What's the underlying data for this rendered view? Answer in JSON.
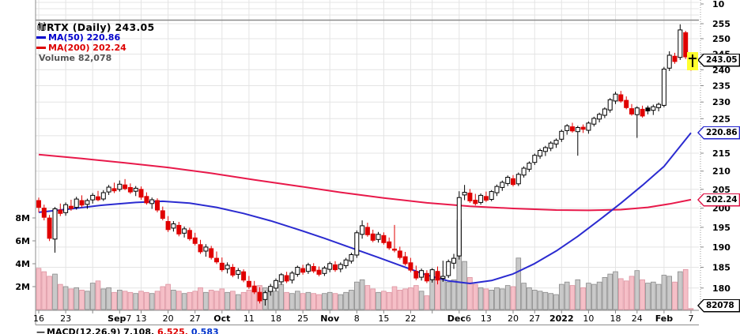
{
  "legend": {
    "symbol_line": "VRTX (Daily) 243.05",
    "ma50": "MA(50) 220.86",
    "ma200": "MA(200) 202.24",
    "volume": "Volume 82,078"
  },
  "axis_boxes": {
    "last": "243.05",
    "ma50": "220.86",
    "ma200": "202.24",
    "volume": "82078"
  },
  "upper_panel_tick": "10",
  "macd": {
    "dash": "—",
    "part1": "MACD(12,26,9) 7.108,",
    "part2": "6.525,",
    "part3": "0.583"
  },
  "colors": {
    "candle_up_border": "#000000",
    "candle_down": "#e00000",
    "ma50_line": "#2b2bd0",
    "ma200_line": "#e8194a",
    "vol_up_fill": "#c9c9c9",
    "vol_up_border": "#8a8a8a",
    "vol_down_fill": "#f5bfc7",
    "vol_down_border": "#dd93a0",
    "grid": "#e4e4e4",
    "panel_border": "#8c8c8c",
    "marker_yellow": "#ffff2e",
    "box_last_border": "#000000",
    "box_ma50_border": "#2222cc",
    "box_ma200_border": "#dd1144"
  },
  "chart_data": {
    "type": "candlestick",
    "symbol": "VRTX",
    "timeframe": "Daily",
    "title": "VRTX (Daily) 243.05",
    "last_price": 243.05,
    "ma50_value": 220.86,
    "ma200_value": 202.24,
    "last_volume": 82078,
    "price_axis": {
      "scale": "log",
      "ticks": [
        255,
        250,
        245,
        240,
        235,
        230,
        225,
        220,
        215,
        210,
        205,
        200,
        195,
        190,
        185,
        180
      ]
    },
    "volume_axis": {
      "ticks_millions": [
        8,
        6,
        4,
        2
      ],
      "labels": [
        "8M",
        "6M",
        "4M",
        "2M"
      ]
    },
    "x_ticks": [
      {
        "i": 0,
        "parts": [
          {
            "t": "16",
            "b": false
          }
        ]
      },
      {
        "i": 5,
        "parts": [
          {
            "t": "23",
            "b": false
          }
        ]
      },
      {
        "i": 15,
        "parts": [
          {
            "t": "Sep",
            "b": true
          },
          {
            "t": "7",
            "b": false
          }
        ]
      },
      {
        "i": 19,
        "parts": [
          {
            "t": "13",
            "b": false
          }
        ]
      },
      {
        "i": 24,
        "parts": [
          {
            "t": "20",
            "b": false
          }
        ]
      },
      {
        "i": 29,
        "parts": [
          {
            "t": "27",
            "b": false
          }
        ]
      },
      {
        "i": 34,
        "parts": [
          {
            "t": "Oct",
            "b": true
          }
        ]
      },
      {
        "i": 39,
        "parts": [
          {
            "t": "11",
            "b": false
          }
        ]
      },
      {
        "i": 44,
        "parts": [
          {
            "t": "18",
            "b": false
          }
        ]
      },
      {
        "i": 49,
        "parts": [
          {
            "t": "25",
            "b": false
          }
        ]
      },
      {
        "i": 54,
        "parts": [
          {
            "t": "Nov",
            "b": true
          }
        ]
      },
      {
        "i": 59,
        "parts": [
          {
            "t": "8",
            "b": false
          }
        ]
      },
      {
        "i": 64,
        "parts": [
          {
            "t": "15",
            "b": false
          }
        ]
      },
      {
        "i": 69,
        "parts": [
          {
            "t": "22",
            "b": false
          }
        ]
      },
      {
        "i": 78,
        "parts": [
          {
            "t": "Dec",
            "b": true
          },
          {
            "t": "6",
            "b": false
          }
        ]
      },
      {
        "i": 83,
        "parts": [
          {
            "t": "13",
            "b": false
          }
        ]
      },
      {
        "i": 88,
        "parts": [
          {
            "t": "20",
            "b": false
          }
        ]
      },
      {
        "i": 92,
        "parts": [
          {
            "t": "27",
            "b": false
          }
        ]
      },
      {
        "i": 97,
        "parts": [
          {
            "t": "2022",
            "b": true
          }
        ]
      },
      {
        "i": 102,
        "parts": [
          {
            "t": "10",
            "b": false
          }
        ]
      },
      {
        "i": 107,
        "parts": [
          {
            "t": "18",
            "b": false
          }
        ]
      },
      {
        "i": 111,
        "parts": [
          {
            "t": "24",
            "b": false
          }
        ]
      },
      {
        "i": 116,
        "parts": [
          {
            "t": "Feb",
            "b": true
          }
        ]
      },
      {
        "i": 121,
        "parts": [
          {
            "t": "7",
            "b": false
          }
        ]
      }
    ],
    "extra_grid_weeks": [
      10,
      73
    ],
    "candles": [
      [
        202.0,
        202.8,
        198.9,
        200.2,
        3.6
      ],
      [
        200.0,
        200.9,
        196.8,
        197.6,
        3.3
      ],
      [
        197.4,
        198.2,
        191.5,
        192.2,
        2.9
      ],
      [
        192.0,
        200.3,
        188.6,
        199.8,
        3.1
      ],
      [
        199.5,
        201.2,
        197.9,
        198.6,
        2.2
      ],
      [
        198.8,
        201.5,
        198.0,
        200.9,
        2.0
      ],
      [
        200.5,
        202.2,
        199.3,
        199.9,
        1.8
      ],
      [
        200.2,
        203.0,
        199.6,
        202.4,
        1.9
      ],
      [
        202.0,
        203.4,
        200.2,
        200.8,
        1.7
      ],
      [
        201.0,
        202.5,
        199.8,
        202.0,
        1.6
      ],
      [
        202.2,
        204.0,
        201.2,
        203.4,
        2.3
      ],
      [
        203.0,
        204.6,
        201.8,
        202.2,
        2.5
      ],
      [
        202.4,
        204.8,
        201.9,
        204.1,
        1.8
      ],
      [
        204.3,
        206.2,
        203.5,
        205.6,
        1.9
      ],
      [
        205.2,
        206.8,
        204.0,
        204.6,
        1.5
      ],
      [
        205.0,
        207.4,
        204.4,
        206.4,
        1.7
      ],
      [
        206.2,
        207.8,
        204.8,
        205.2,
        1.6
      ],
      [
        205.5,
        206.6,
        203.8,
        204.3,
        1.5
      ],
      [
        204.5,
        205.9,
        203.2,
        205.3,
        1.4
      ],
      [
        205.0,
        205.8,
        202.2,
        202.9,
        1.6
      ],
      [
        203.1,
        204.2,
        200.9,
        201.4,
        1.5
      ],
      [
        201.2,
        202.8,
        199.8,
        202.2,
        1.4
      ],
      [
        202.0,
        202.6,
        198.9,
        199.5,
        1.6
      ],
      [
        199.3,
        200.4,
        196.8,
        197.3,
        2.0
      ],
      [
        196.5,
        197.9,
        193.8,
        194.4,
        2.2
      ],
      [
        194.8,
        196.6,
        193.9,
        195.9,
        1.7
      ],
      [
        195.5,
        196.4,
        192.7,
        193.3,
        1.6
      ],
      [
        193.5,
        195.2,
        192.4,
        194.6,
        1.4
      ],
      [
        194.2,
        194.9,
        191.6,
        192.1,
        1.5
      ],
      [
        192.3,
        193.6,
        190.4,
        190.9,
        1.6
      ],
      [
        190.6,
        191.8,
        188.3,
        188.8,
        1.9
      ],
      [
        189.0,
        190.7,
        187.6,
        190.0,
        1.5
      ],
      [
        189.6,
        190.3,
        186.9,
        187.4,
        1.7
      ],
      [
        187.2,
        188.9,
        185.8,
        186.3,
        1.6
      ],
      [
        186.0,
        187.4,
        183.9,
        184.4,
        1.8
      ],
      [
        184.6,
        186.2,
        183.5,
        185.5,
        1.5
      ],
      [
        185.0,
        185.8,
        182.6,
        183.1,
        1.6
      ],
      [
        183.3,
        184.8,
        182.2,
        184.2,
        1.3
      ],
      [
        183.9,
        184.5,
        181.4,
        181.9,
        1.5
      ],
      [
        181.6,
        182.9,
        179.8,
        180.3,
        1.7
      ],
      [
        180.5,
        181.7,
        178.6,
        179.1,
        1.8
      ],
      [
        179.0,
        180.2,
        176.4,
        177.0,
        2.1
      ],
      [
        177.3,
        179.4,
        175.9,
        178.9,
        1.9
      ],
      [
        179.2,
        181.0,
        178.2,
        180.4,
        1.7
      ],
      [
        180.0,
        182.3,
        179.3,
        181.8,
        1.6
      ],
      [
        181.5,
        183.6,
        180.8,
        183.2,
        2.2
      ],
      [
        183.0,
        183.9,
        181.2,
        181.7,
        1.5
      ],
      [
        181.9,
        184.1,
        181.1,
        183.6,
        1.4
      ],
      [
        183.3,
        185.4,
        182.7,
        185.0,
        1.6
      ],
      [
        184.7,
        185.6,
        183.2,
        183.8,
        1.4
      ],
      [
        184.0,
        186.1,
        183.4,
        185.6,
        1.5
      ],
      [
        185.2,
        186.0,
        183.6,
        184.1,
        1.4
      ],
      [
        184.3,
        185.2,
        182.8,
        183.3,
        1.3
      ],
      [
        183.5,
        185.3,
        182.9,
        184.8,
        1.4
      ],
      [
        184.5,
        186.4,
        183.8,
        185.9,
        1.5
      ],
      [
        185.6,
        186.5,
        183.9,
        184.4,
        1.4
      ],
      [
        184.6,
        186.2,
        183.8,
        185.7,
        1.3
      ],
      [
        185.4,
        187.3,
        184.7,
        186.8,
        1.5
      ],
      [
        186.5,
        188.6,
        185.9,
        188.1,
        1.7
      ],
      [
        188.0,
        194.2,
        187.3,
        193.6,
        2.4
      ],
      [
        193.2,
        196.8,
        192.1,
        195.4,
        2.6
      ],
      [
        195.0,
        196.2,
        192.6,
        193.1,
        2.1
      ],
      [
        193.3,
        194.4,
        191.2,
        191.7,
        1.8
      ],
      [
        191.9,
        193.8,
        191.1,
        193.2,
        1.5
      ],
      [
        192.9,
        193.7,
        190.6,
        191.1,
        1.6
      ],
      [
        191.3,
        192.4,
        189.3,
        189.8,
        1.5
      ],
      [
        189.5,
        195.6,
        188.7,
        189.2,
        2.0
      ],
      [
        189.0,
        190.1,
        186.9,
        187.4,
        1.7
      ],
      [
        187.6,
        188.8,
        185.4,
        185.9,
        1.8
      ],
      [
        186.1,
        187.3,
        183.8,
        184.3,
        1.9
      ],
      [
        184.0,
        185.4,
        181.9,
        182.4,
        2.1
      ],
      [
        182.6,
        184.7,
        181.8,
        184.2,
        1.6
      ],
      [
        183.5,
        184.3,
        181.2,
        181.7,
        1.2
      ],
      [
        182.0,
        184.8,
        181.3,
        184.4,
        2.8
      ],
      [
        184.0,
        185.2,
        180.9,
        181.9,
        3.2
      ],
      [
        182.3,
        186.6,
        181.5,
        182.8,
        2.9
      ],
      [
        183.0,
        186.9,
        182.4,
        186.4,
        2.4
      ],
      [
        186.0,
        188.3,
        184.6,
        187.2,
        2.6
      ],
      [
        187.8,
        204.5,
        186.9,
        202.8,
        7.8
      ],
      [
        203.5,
        206.2,
        202.1,
        204.2,
        4.2
      ],
      [
        204.0,
        205.1,
        201.4,
        201.9,
        2.8
      ],
      [
        202.1,
        203.8,
        200.7,
        201.2,
        2.2
      ],
      [
        201.5,
        203.9,
        200.9,
        203.4,
        1.9
      ],
      [
        203.1,
        204.4,
        201.6,
        202.1,
        1.8
      ],
      [
        202.3,
        204.8,
        201.8,
        204.4,
        1.7
      ],
      [
        204.1,
        206.3,
        203.2,
        205.8,
        1.9
      ],
      [
        205.5,
        207.4,
        204.6,
        206.9,
        1.8
      ],
      [
        206.6,
        208.8,
        205.9,
        208.3,
        2.1
      ],
      [
        207.9,
        208.9,
        205.8,
        206.3,
        2.0
      ],
      [
        206.5,
        209.6,
        205.9,
        209.1,
        4.5
      ],
      [
        208.9,
        211.3,
        208.2,
        210.8,
        2.3
      ],
      [
        210.5,
        212.7,
        209.8,
        212.2,
        1.9
      ],
      [
        212.4,
        214.9,
        211.7,
        214.4,
        1.7
      ],
      [
        214.2,
        216.3,
        213.4,
        215.8,
        1.6
      ],
      [
        215.5,
        217.1,
        214.2,
        216.6,
        1.5
      ],
      [
        216.4,
        218.4,
        215.6,
        217.9,
        1.4
      ],
      [
        217.6,
        219.2,
        216.5,
        218.7,
        1.3
      ],
      [
        219.0,
        221.8,
        218.2,
        221.3,
        2.2
      ],
      [
        221.5,
        223.4,
        220.3,
        222.9,
        2.4
      ],
      [
        222.6,
        223.8,
        220.9,
        221.4,
        2.1
      ],
      [
        221.2,
        222.9,
        214.3,
        222.4,
        2.6
      ],
      [
        222.5,
        223.3,
        220.8,
        221.9,
        1.9
      ],
      [
        221.6,
        224.2,
        220.6,
        223.7,
        2.3
      ],
      [
        223.4,
        225.6,
        222.7,
        225.1,
        2.2
      ],
      [
        224.9,
        226.8,
        223.9,
        226.3,
        2.4
      ],
      [
        226.0,
        228.4,
        225.2,
        227.9,
        2.8
      ],
      [
        227.6,
        231.2,
        226.8,
        230.7,
        3.1
      ],
      [
        230.3,
        233.1,
        229.4,
        232.4,
        3.3
      ],
      [
        232.2,
        233.4,
        229.8,
        230.3,
        2.7
      ],
      [
        230.5,
        231.7,
        227.8,
        228.3,
        2.5
      ],
      [
        228.0,
        229.4,
        225.9,
        226.4,
        2.9
      ],
      [
        226.2,
        228.7,
        219.4,
        228.2,
        3.4
      ],
      [
        227.8,
        228.9,
        225.3,
        225.8,
        2.6
      ],
      [
        228.2,
        228.9,
        226.3,
        227.3,
        2.3
      ],
      [
        227.5,
        229.2,
        226.1,
        228.6,
        2.4
      ],
      [
        228.3,
        229.8,
        227.2,
        229.3,
        2.2
      ],
      [
        229.0,
        240.9,
        228.4,
        240.2,
        3.0
      ],
      [
        240.5,
        245.9,
        239.6,
        244.6,
        2.9
      ],
      [
        244.3,
        245.4,
        241.9,
        242.6,
        2.4
      ],
      [
        243.9,
        254.8,
        243.1,
        252.9,
        3.3
      ],
      [
        252.0,
        252.6,
        243.4,
        244.1,
        3.5
      ],
      [
        242.2,
        244.5,
        239.7,
        243.05,
        0.08
      ]
    ],
    "ma50_points": [
      [
        0,
        198.9
      ],
      [
        6,
        199.8
      ],
      [
        12,
        200.8
      ],
      [
        18,
        201.5
      ],
      [
        23,
        201.8
      ],
      [
        28,
        201.3
      ],
      [
        33,
        200.2
      ],
      [
        38,
        198.6
      ],
      [
        43,
        196.7
      ],
      [
        48,
        194.5
      ],
      [
        53,
        192.2
      ],
      [
        58,
        189.8
      ],
      [
        63,
        187.4
      ],
      [
        68,
        185.0
      ],
      [
        72,
        183.1
      ],
      [
        76,
        181.7
      ],
      [
        80,
        181.1
      ],
      [
        84,
        181.8
      ],
      [
        88,
        183.4
      ],
      [
        92,
        185.9
      ],
      [
        96,
        189.0
      ],
      [
        100,
        192.7
      ],
      [
        104,
        196.9
      ],
      [
        108,
        201.3
      ],
      [
        112,
        206.1
      ],
      [
        116,
        211.3
      ],
      [
        121,
        220.86
      ]
    ],
    "ma200_points": [
      [
        0,
        214.6
      ],
      [
        8,
        213.5
      ],
      [
        16,
        212.3
      ],
      [
        24,
        211.0
      ],
      [
        32,
        209.4
      ],
      [
        40,
        207.6
      ],
      [
        48,
        205.9
      ],
      [
        56,
        204.2
      ],
      [
        64,
        202.7
      ],
      [
        72,
        201.4
      ],
      [
        80,
        200.5
      ],
      [
        88,
        199.9
      ],
      [
        96,
        199.5
      ],
      [
        102,
        199.4
      ],
      [
        108,
        199.6
      ],
      [
        113,
        200.2
      ],
      [
        117,
        201.1
      ],
      [
        121,
        202.24
      ]
    ]
  }
}
